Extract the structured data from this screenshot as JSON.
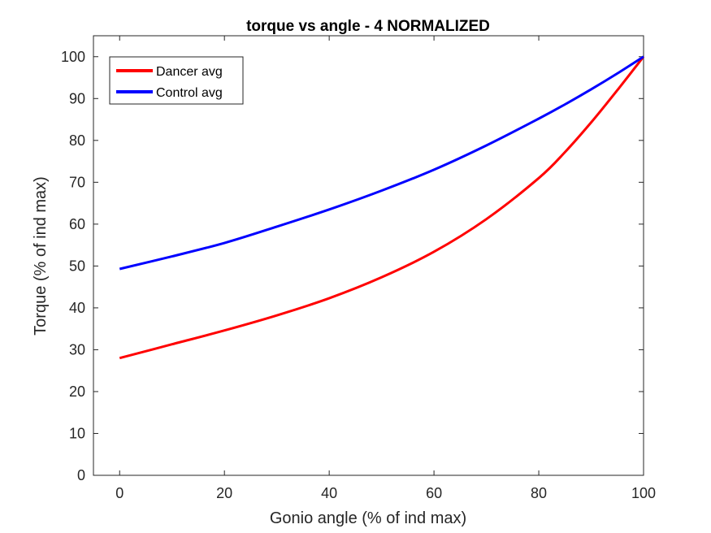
{
  "chart_data": {
    "type": "line",
    "title": "torque vs angle - 4 NORMALIZED",
    "xlabel": "Gonio angle (% of ind max)",
    "ylabel": "Torque (% of ind max)",
    "xlim": [
      -5,
      100
    ],
    "ylim": [
      0,
      105
    ],
    "xticks": [
      0,
      20,
      40,
      60,
      80,
      100
    ],
    "yticks": [
      0,
      10,
      20,
      30,
      40,
      50,
      60,
      70,
      80,
      90,
      100
    ],
    "grid": false,
    "legend_position": "top-left",
    "x": [
      0,
      10,
      20,
      30,
      40,
      50,
      60,
      70,
      80,
      85,
      90,
      95,
      100
    ],
    "series": [
      {
        "name": "Dancer avg",
        "color": "#ff0000",
        "values": [
          28,
          31.3,
          34.6,
          38.2,
          42.3,
          47.3,
          53.4,
          61.2,
          71.0,
          77.2,
          84.3,
          92.0,
          100
        ]
      },
      {
        "name": "Control avg",
        "color": "#0000ff",
        "values": [
          49.3,
          52.3,
          55.5,
          59.4,
          63.5,
          68.0,
          73.0,
          78.8,
          85.2,
          88.6,
          92.2,
          96.0,
          100
        ]
      }
    ]
  }
}
